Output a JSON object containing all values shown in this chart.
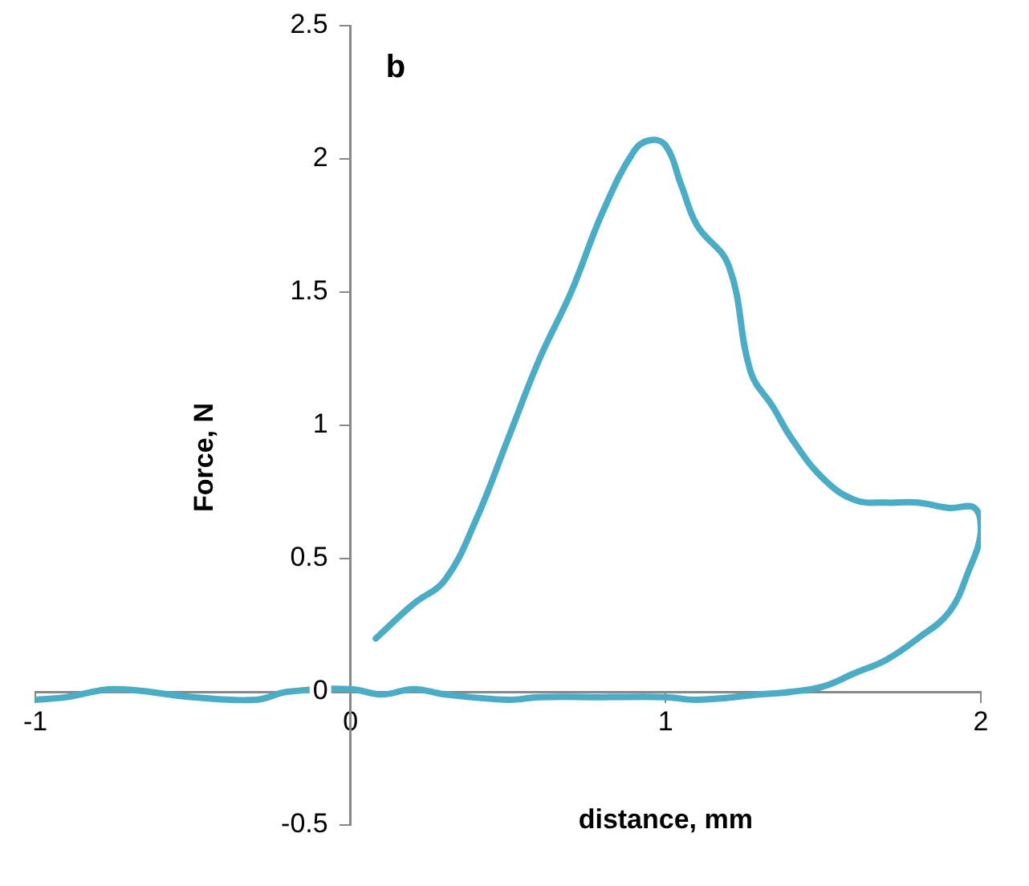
{
  "chart_data": {
    "type": "line",
    "xlabel": "distance, mm",
    "ylabel": "Force, N",
    "annotations": [
      "b"
    ],
    "xlim": [
      -1,
      2
    ],
    "ylim": [
      -0.5,
      2.5
    ],
    "xticks": [
      -1,
      0,
      1,
      2
    ],
    "yticks": [
      -0.5,
      0,
      0.5,
      1,
      1.5,
      2,
      2.5
    ],
    "grid": false,
    "legend": false,
    "marker": "none",
    "line_style": "solid",
    "series": [
      {
        "color": "#4bacc6",
        "x": [
          0.08,
          0.2,
          0.3,
          0.4,
          0.5,
          0.6,
          0.7,
          0.8,
          0.9,
          0.95,
          1.0,
          1.05,
          1.1,
          1.2,
          1.27,
          1.34,
          1.4,
          1.5,
          1.6,
          1.7,
          1.8,
          1.9,
          1.98,
          2.0,
          1.96,
          1.9,
          1.8,
          1.7,
          1.6,
          1.5,
          1.4,
          1.3,
          1.1,
          1.0,
          0.8,
          0.6,
          0.5,
          0.3,
          0.2,
          0.1,
          0.0,
          -0.2,
          -0.3,
          -0.5,
          -0.75,
          -0.9,
          -1.0
        ],
        "values": [
          0.2,
          0.33,
          0.42,
          0.65,
          0.95,
          1.25,
          1.5,
          1.8,
          2.03,
          2.07,
          2.05,
          1.9,
          1.75,
          1.6,
          1.2,
          1.07,
          0.95,
          0.8,
          0.72,
          0.71,
          0.71,
          0.69,
          0.69,
          0.6,
          0.45,
          0.3,
          0.2,
          0.12,
          0.07,
          0.02,
          0.0,
          -0.01,
          -0.03,
          -0.02,
          -0.02,
          -0.02,
          -0.03,
          -0.01,
          0.01,
          -0.01,
          0.01,
          0.0,
          -0.03,
          -0.02,
          0.01,
          -0.02,
          -0.03
        ]
      }
    ]
  }
}
